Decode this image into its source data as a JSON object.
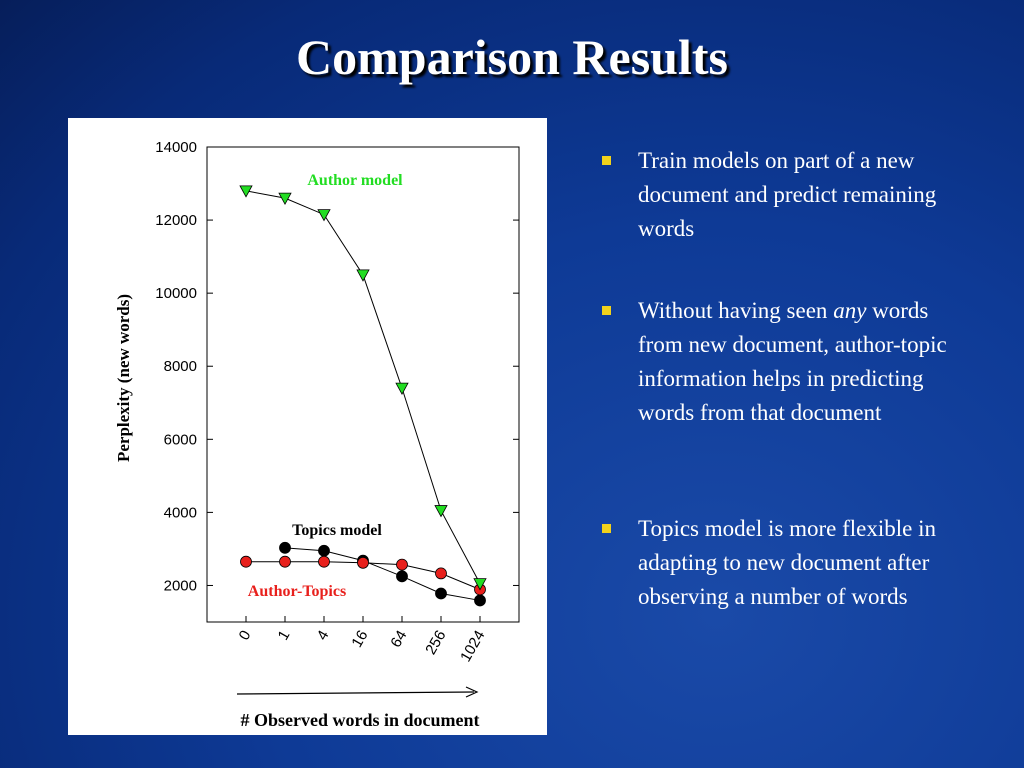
{
  "title": "Comparison Results",
  "bullets": [
    {
      "text": "Train models on part of a new document and predict remaining words"
    },
    {
      "before": "Without having seen ",
      "emphasis": "any",
      "after": " words from new document, author-topic information helps in predicting words from that document"
    },
    {
      "text": "Topics model is more flexible in adapting to new document after observing a number of words"
    }
  ],
  "chart_data": {
    "type": "line",
    "categories": [
      "0",
      "1",
      "4",
      "16",
      "64",
      "256",
      "1024"
    ],
    "series": [
      {
        "name": "Author model",
        "color": "#22dd22",
        "marker": "triangle",
        "values": [
          12800,
          12600,
          12150,
          10500,
          7400,
          4050,
          2050
        ]
      },
      {
        "name": "Topics model",
        "color": "#000000",
        "marker": "circle",
        "values": [
          null,
          3030,
          2950,
          2680,
          2250,
          1780,
          1590
        ]
      },
      {
        "name": "Author-Topics",
        "color": "#e8201c",
        "marker": "circle",
        "values": [
          2650,
          2650,
          2650,
          2620,
          2570,
          2330,
          1890
        ]
      }
    ],
    "ylim": [
      1000,
      14000
    ],
    "yticks": [
      2000,
      4000,
      6000,
      8000,
      10000,
      12000,
      14000
    ],
    "ylabel": "Perplexity (new words)",
    "xlabel": "# Observed words in document",
    "grid": false
  }
}
